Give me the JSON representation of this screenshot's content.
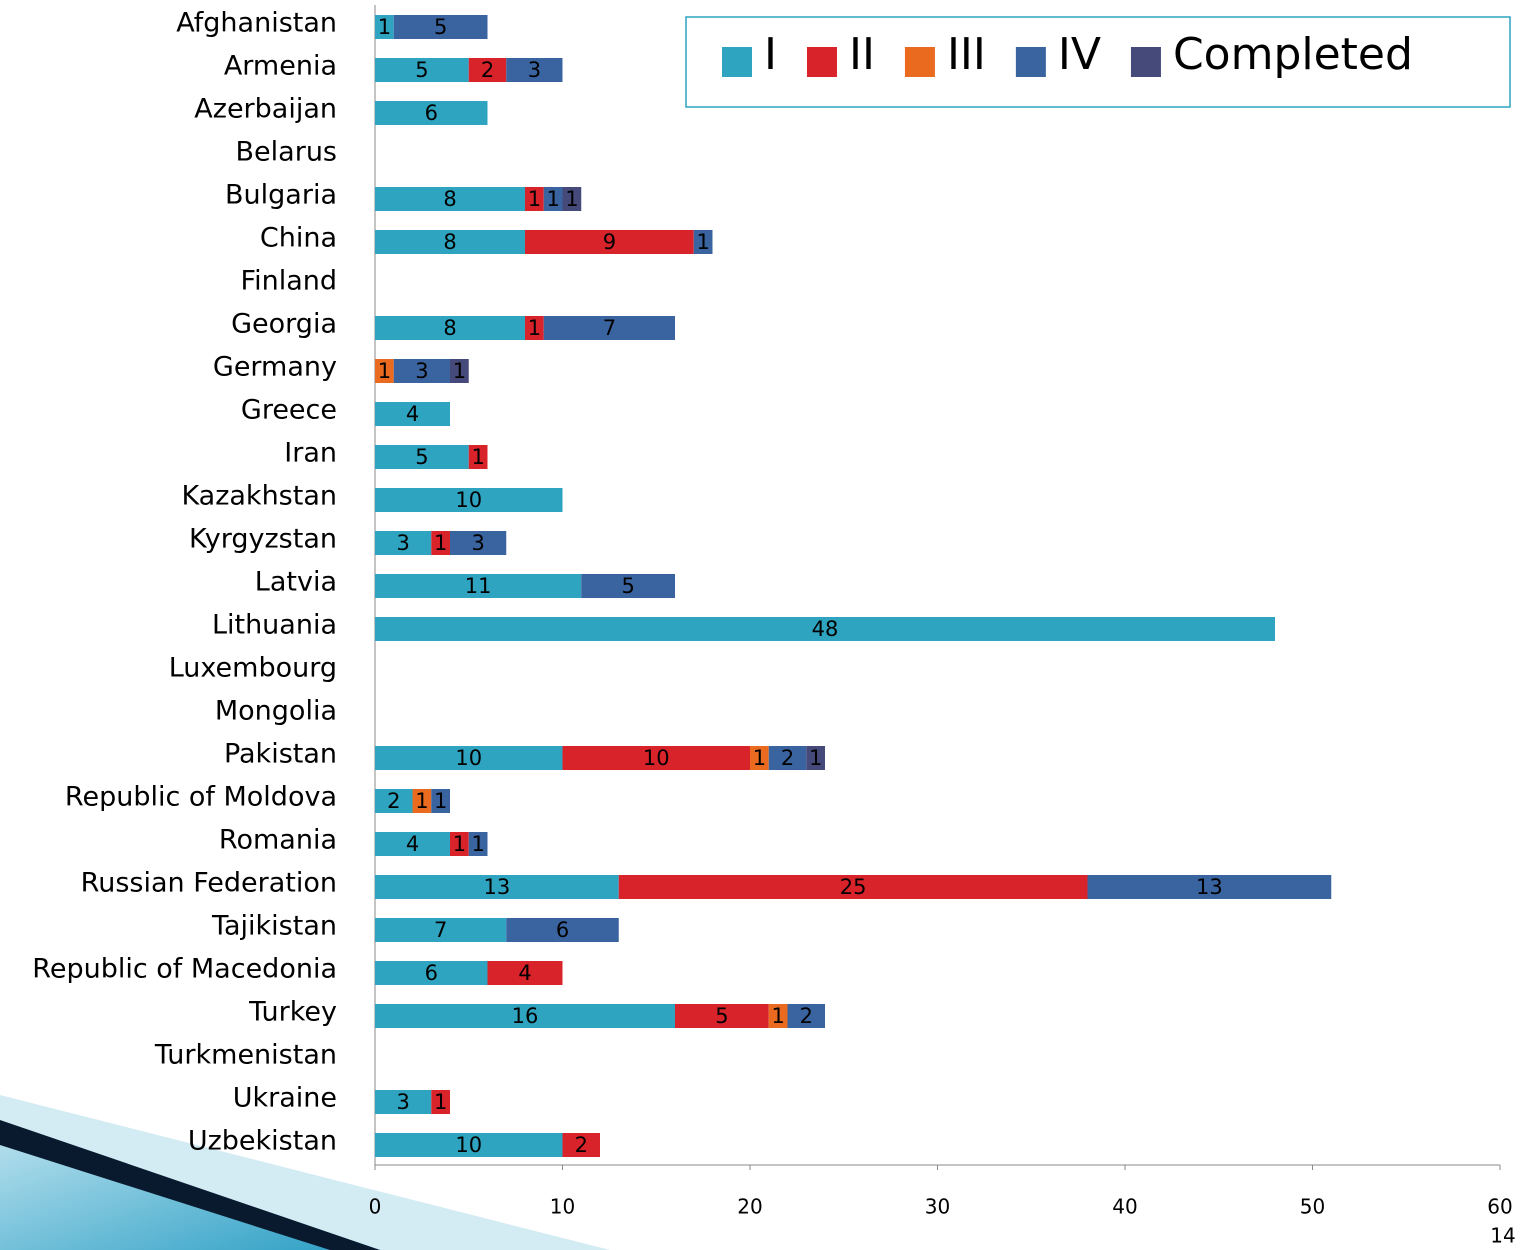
{
  "chart_data": {
    "type": "bar",
    "orientation": "horizontal",
    "stacked": true,
    "categories": [
      "Afghanistan",
      "Armenia",
      "Azerbaijan",
      "Belarus",
      "Bulgaria",
      "China",
      "Finland",
      "Georgia",
      "Germany",
      "Greece",
      "Iran",
      "Kazakhstan",
      "Kyrgyzstan",
      "Latvia",
      "Lithuania",
      "Luxembourg",
      "Mongolia",
      "Pakistan",
      "Republic of Moldova",
      "Romania",
      "Russian Federation",
      "Tajikistan",
      "Republic of Macedonia",
      "Turkey",
      "Turkmenistan",
      "Ukraine",
      "Uzbekistan"
    ],
    "series": [
      {
        "name": "I",
        "color": "#2ea4c0",
        "values": [
          1,
          5,
          6,
          null,
          8,
          8,
          null,
          8,
          null,
          4,
          5,
          10,
          3,
          11,
          48,
          null,
          null,
          10,
          2,
          4,
          13,
          7,
          6,
          16,
          null,
          3,
          10
        ]
      },
      {
        "name": "II",
        "color": "#d9232a",
        "values": [
          null,
          2,
          null,
          null,
          1,
          9,
          null,
          1,
          null,
          null,
          1,
          null,
          1,
          null,
          null,
          null,
          null,
          10,
          null,
          1,
          25,
          null,
          4,
          5,
          null,
          1,
          2
        ]
      },
      {
        "name": "III",
        "color": "#ea6a20",
        "values": [
          null,
          null,
          null,
          null,
          null,
          null,
          null,
          null,
          1,
          null,
          null,
          null,
          null,
          null,
          null,
          null,
          null,
          1,
          1,
          null,
          null,
          null,
          null,
          1,
          null,
          null,
          null
        ]
      },
      {
        "name": "IV",
        "color": "#3a64a0",
        "values": [
          5,
          3,
          null,
          null,
          1,
          1,
          null,
          7,
          3,
          null,
          null,
          null,
          3,
          5,
          null,
          null,
          null,
          2,
          1,
          1,
          13,
          6,
          null,
          2,
          null,
          null,
          null
        ]
      },
      {
        "name": "Completed",
        "color": "#464a7a",
        "values": [
          null,
          null,
          null,
          null,
          1,
          null,
          null,
          null,
          1,
          null,
          null,
          null,
          null,
          null,
          null,
          null,
          null,
          1,
          null,
          null,
          null,
          null,
          null,
          null,
          null,
          null,
          null
        ]
      }
    ],
    "xlim": [
      0,
      60
    ],
    "xticks": [
      0,
      10,
      20,
      30,
      40,
      50,
      60
    ],
    "legend": "top-right"
  },
  "slide_number": "14"
}
